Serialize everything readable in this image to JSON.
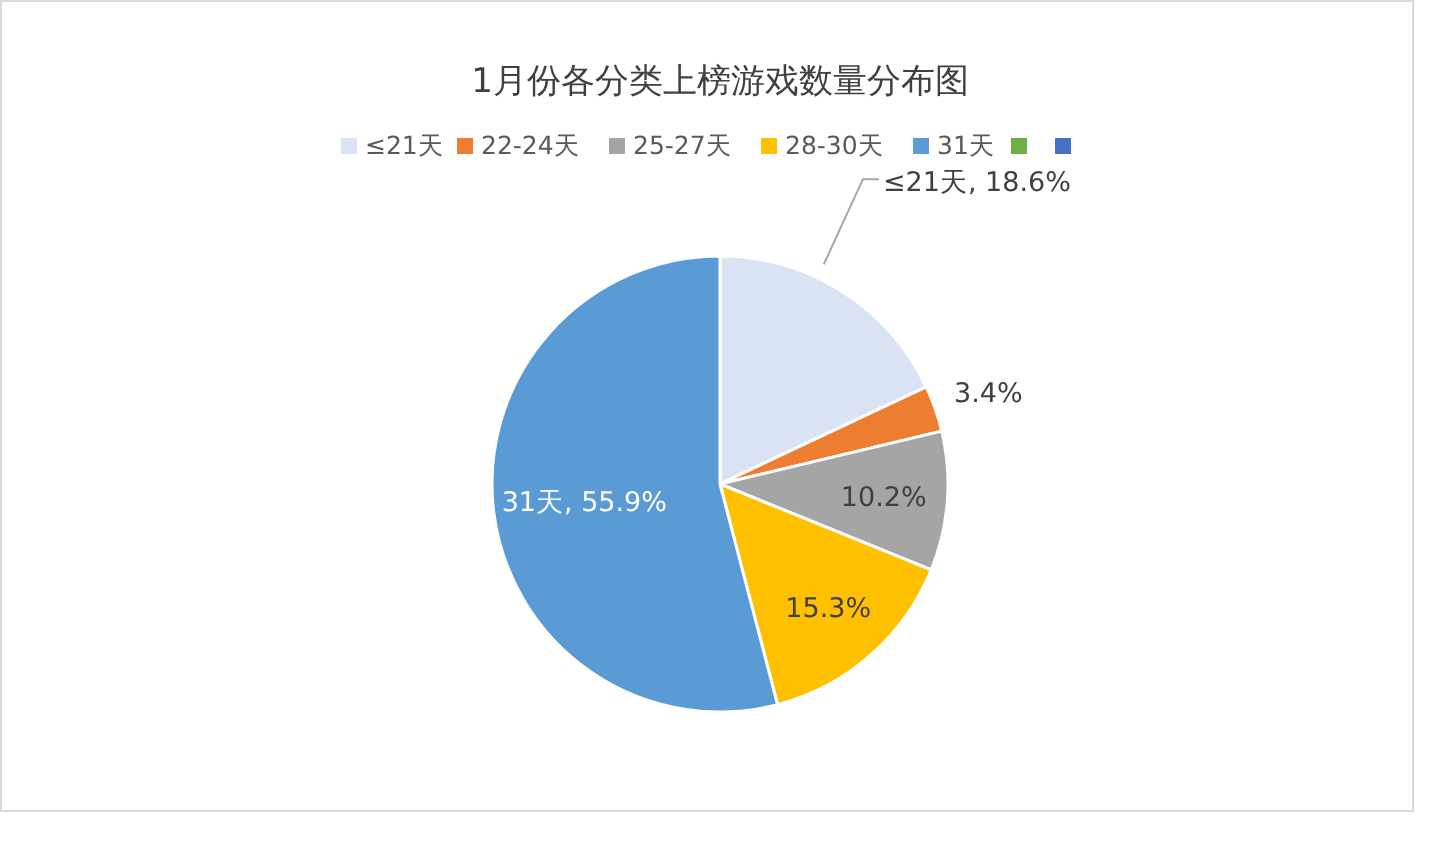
{
  "chart_data": {
    "type": "pie",
    "title": "1月份各分类上榜游戏数量分布图",
    "categories": [
      "≤21天",
      "22-24天",
      "25-27天",
      "28-30天",
      "31天",
      null,
      null
    ],
    "values": [
      18.6,
      3.4,
      10.2,
      15.3,
      55.9,
      0,
      0
    ],
    "colors": [
      "#dae3f3",
      "#ed7d31",
      "#a5a5a5",
      "#ffc000",
      "#5b9bd5",
      "#70ad47",
      "#4472c4"
    ],
    "value_labels": [
      "≤21天, 18.6%",
      "3.4%",
      "10.2%",
      "15.3%",
      "31天, 55.9%",
      null,
      null
    ],
    "legend": "top"
  }
}
